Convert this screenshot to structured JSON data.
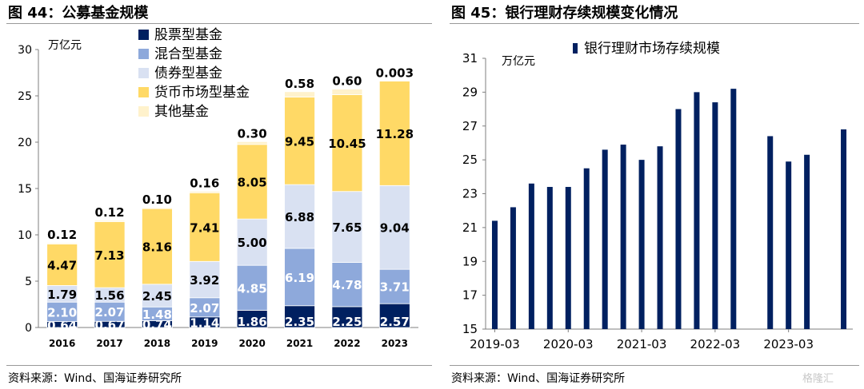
{
  "left_panel": {
    "title": "图 44：公募基金规模",
    "source": "资料来源：Wind、国海证券研究所"
  },
  "right_panel": {
    "title": "图 45：银行理财存续规模变化情况",
    "source": "资料来源：Wind、国海证券研究所"
  },
  "watermark": "格隆汇",
  "colors": {
    "stock": "#002060",
    "hybrid": "#8EA9DB",
    "bond": "#D9E1F2",
    "money": "#FFD966",
    "other": "#FFF2CC",
    "wealth_bar": "#002060"
  },
  "chart_data": [
    {
      "type": "bar",
      "stacked": true,
      "unit_label": "万亿元",
      "categories": [
        "2016",
        "2017",
        "2018",
        "2019",
        "2020",
        "2021",
        "2022",
        "2023"
      ],
      "ylim": [
        0,
        30
      ],
      "yticks": [
        "0",
        "5",
        "10",
        "15",
        "20",
        "25",
        "30"
      ],
      "legend_position": "top-left",
      "series": [
        {
          "name": "股票型基金",
          "color_key": "stock",
          "values": [
            0.64,
            0.67,
            0.74,
            1.14,
            1.86,
            2.35,
            2.25,
            2.57
          ],
          "labels": [
            "0.64",
            "0.67",
            "0.74",
            "1.14",
            "1.86",
            "2.35",
            "2.25",
            "2.57"
          ]
        },
        {
          "name": "混合型基金",
          "color_key": "hybrid",
          "values": [
            2.1,
            2.07,
            1.48,
            2.07,
            4.85,
            6.19,
            4.78,
            3.71
          ],
          "labels": [
            "2.10",
            "2.07",
            "1.48",
            "2.07",
            "4.85",
            "6.19",
            "4.78",
            "3.71"
          ]
        },
        {
          "name": "债券型基金",
          "color_key": "bond",
          "values": [
            1.79,
            1.56,
            2.45,
            3.92,
            5.0,
            6.88,
            7.65,
            9.04
          ],
          "labels": [
            "1.79",
            "1.56",
            "2.45",
            "3.92",
            "5.00",
            "6.88",
            "7.65",
            "9.04"
          ]
        },
        {
          "name": "货币市场型基金",
          "color_key": "money",
          "values": [
            4.47,
            7.13,
            8.16,
            7.41,
            8.05,
            9.45,
            10.45,
            11.28
          ],
          "labels": [
            "4.47",
            "7.13",
            "8.16",
            "7.41",
            "8.05",
            "9.45",
            "10.45",
            "11.28"
          ]
        },
        {
          "name": "其他基金",
          "color_key": "other",
          "values": [
            0.12,
            0.12,
            0.1,
            0.16,
            0.3,
            0.58,
            0.6,
            0.003
          ],
          "labels": [
            "0.12",
            "0.12",
            "0.10",
            "0.16",
            "0.30",
            "0.58",
            "0.60",
            "0.003"
          ]
        }
      ]
    },
    {
      "type": "bar",
      "unit_label": "万亿元",
      "x_tick_labels": [
        "2019-03",
        "2020-03",
        "2021-03",
        "2022-03",
        "2023-03"
      ],
      "x": [
        "2019-03",
        "2019-06",
        "2019-09",
        "2019-12",
        "2020-03",
        "2020-06",
        "2020-09",
        "2020-12",
        "2021-03",
        "2021-06",
        "2021-09",
        "2021-12",
        "2022-03",
        "2022-06",
        "2022-09",
        "2022-12",
        "2023-03",
        "2023-06",
        "2023-09",
        "2023-12"
      ],
      "series": [
        {
          "name": "银行理财市场存续规模",
          "color_key": "wealth_bar",
          "values": [
            21.4,
            22.2,
            23.6,
            23.4,
            23.4,
            24.5,
            25.6,
            25.9,
            25.0,
            25.8,
            28.0,
            29.0,
            28.4,
            29.2,
            null,
            26.4,
            24.9,
            25.3,
            null,
            26.8
          ]
        }
      ],
      "ylim": [
        15,
        31
      ],
      "yticks": [
        "15",
        "17",
        "19",
        "21",
        "23",
        "25",
        "27",
        "29",
        "31"
      ],
      "legend_position": "top"
    }
  ]
}
